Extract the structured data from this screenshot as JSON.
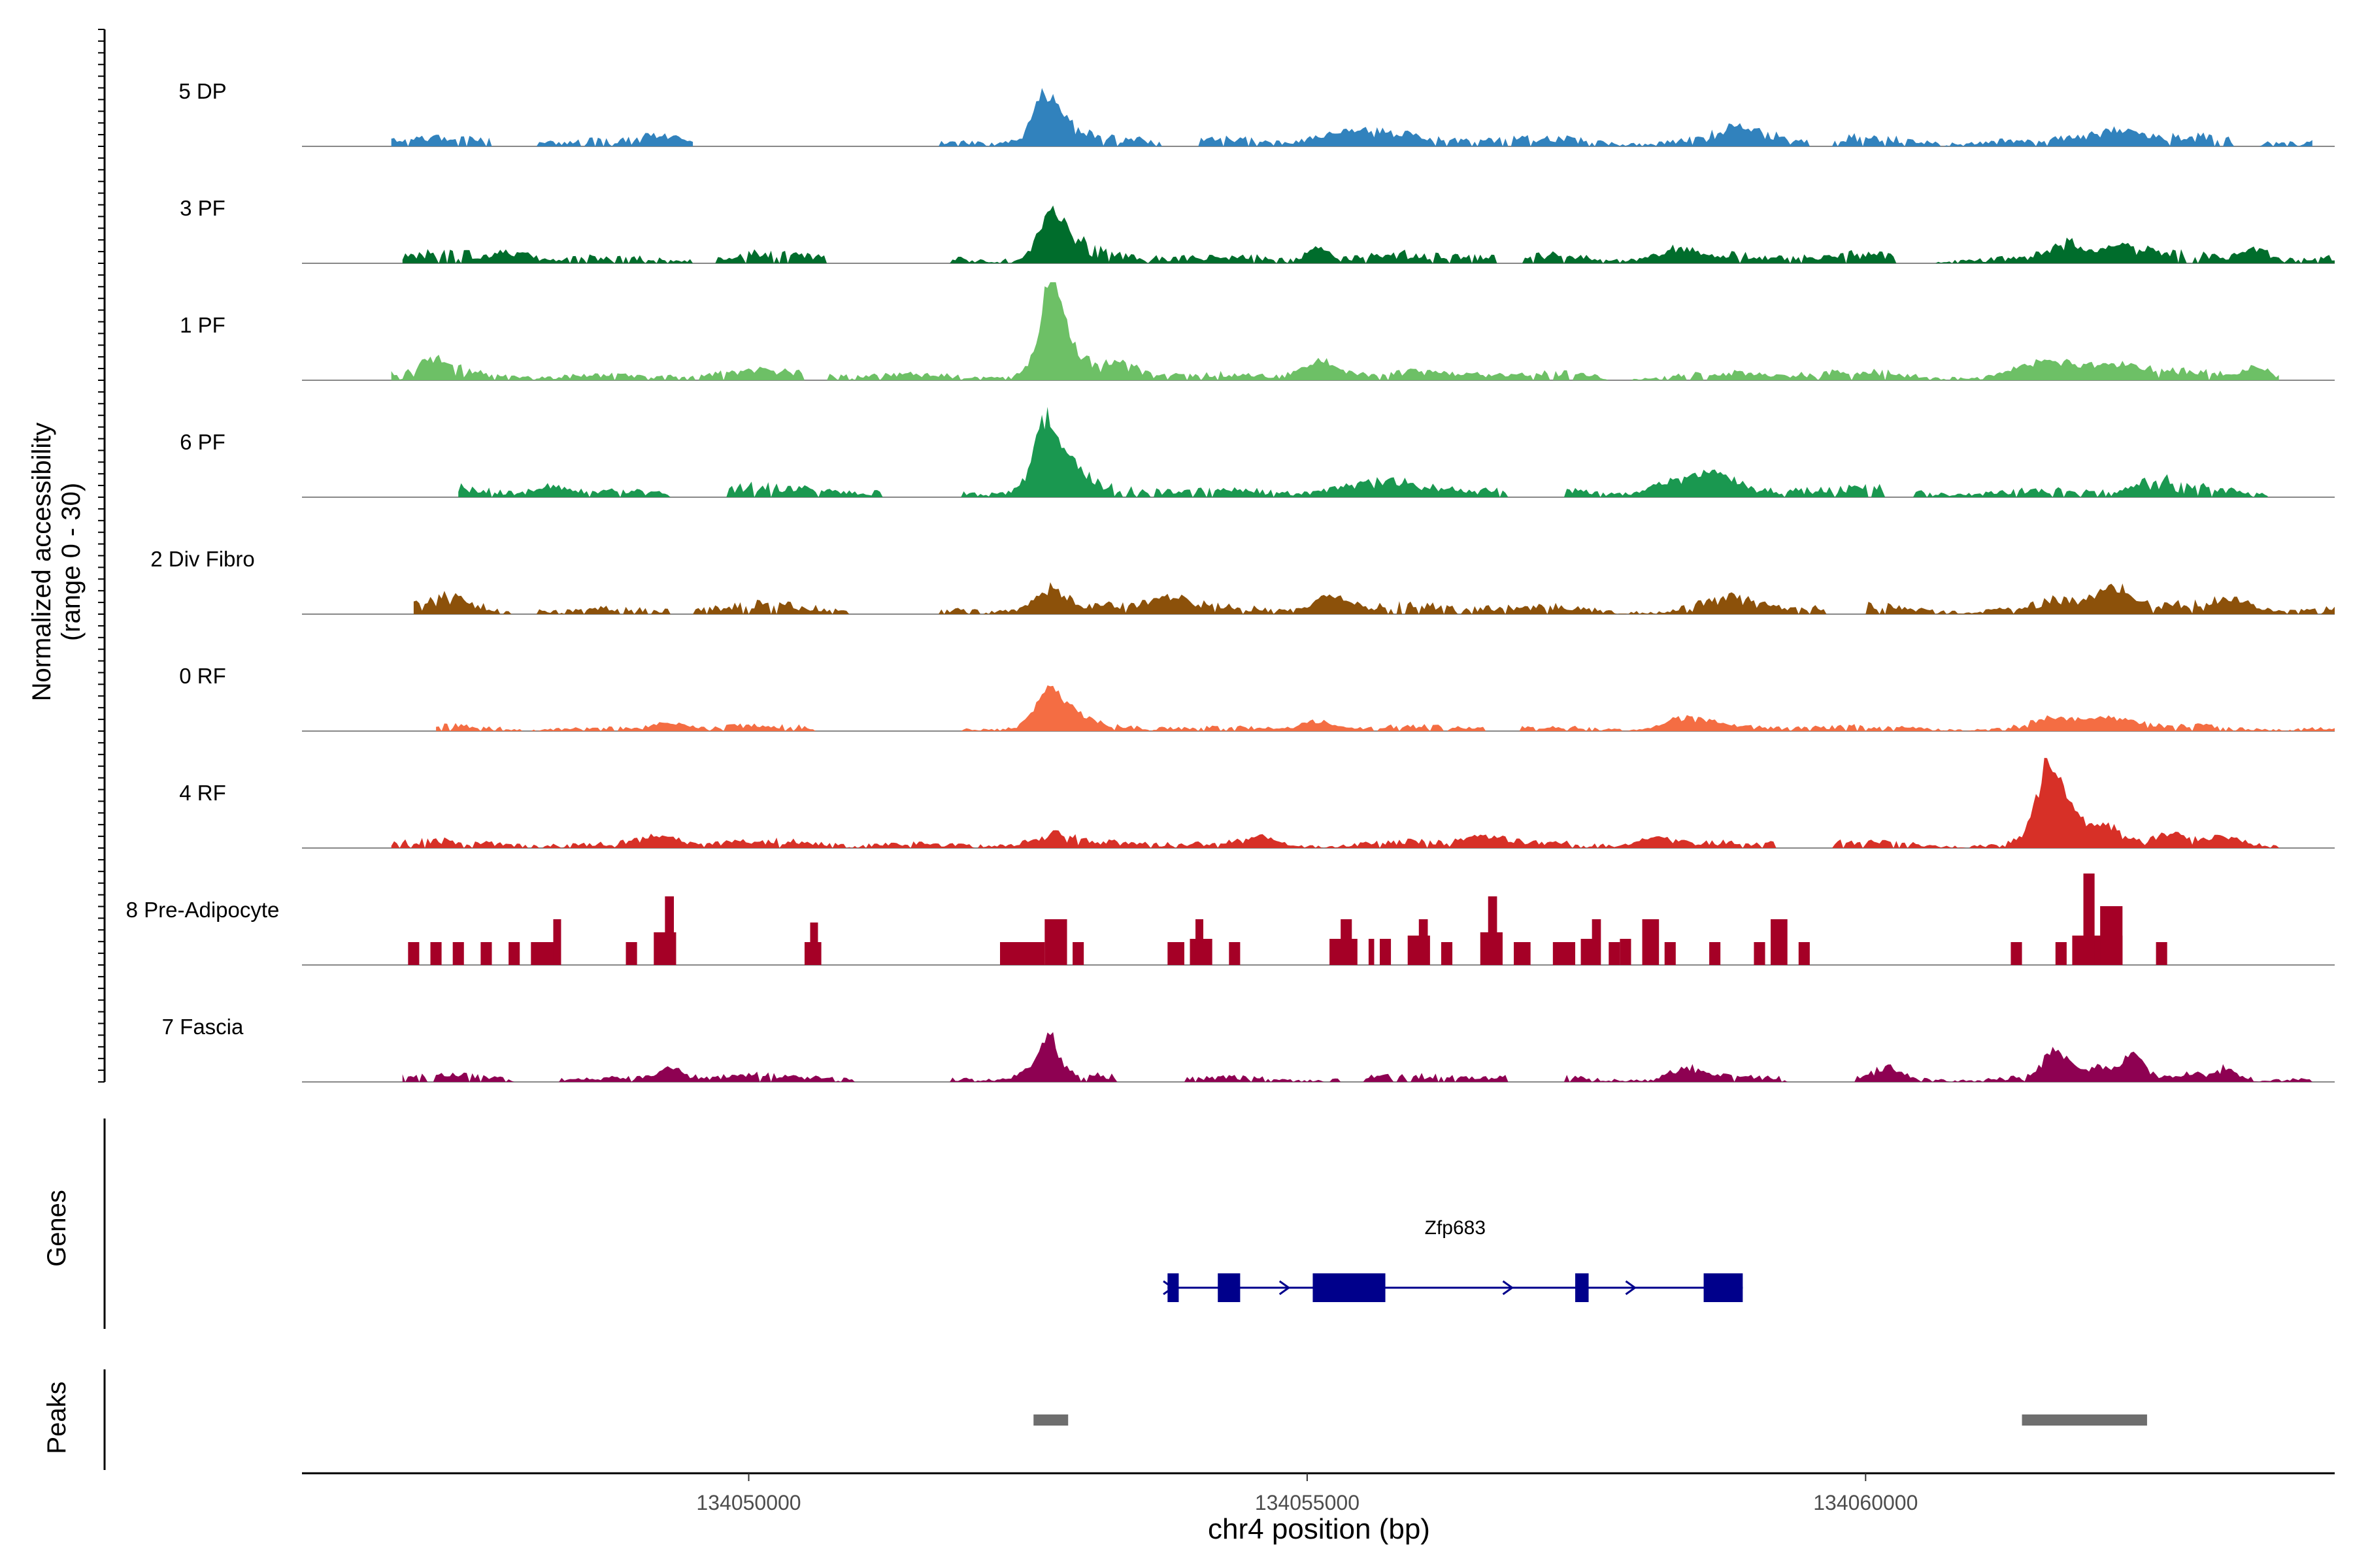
{
  "chart_data": {
    "type": "area",
    "title": "",
    "ylabel_line1": "Normalized accessibility",
    "ylabel_line2": "(range 0 - 30)",
    "xlabel": "chr4 position (bp)",
    "xlim": [
      134046000,
      134064200
    ],
    "ylim": [
      0,
      30
    ],
    "x_ticks": [
      134050000,
      134055000,
      134060000
    ],
    "x_tick_labels": [
      "134050000",
      "134055000",
      "134060000"
    ],
    "genes_label": "Genes",
    "peaks_label": "Peaks",
    "tracks": [
      {
        "name": "5 DP",
        "color": "#3182BD",
        "regions": [
          [
            134046800,
            134049500
          ],
          [
            134051700,
            134064000
          ]
        ],
        "base": 1.4,
        "noise": 2.2,
        "peaks": [
          [
            134052650,
            13,
            110
          ],
          [
            134052800,
            4,
            160
          ],
          [
            134055400,
            4,
            300
          ],
          [
            134058900,
            4,
            230
          ],
          [
            134062200,
            4,
            220
          ],
          [
            134049200,
            2.5,
            150
          ]
        ],
        "gaps": [
          [
            134047700,
            134048100
          ],
          [
            134050200,
            134051700
          ],
          [
            134053700,
            134054000
          ],
          [
            134059500,
            134059700
          ],
          [
            134063300,
            134063500
          ]
        ]
      },
      {
        "name": "3 PF",
        "color": "#006D2C",
        "regions": [
          [
            134046900,
            134064200
          ]
        ],
        "base": 1.4,
        "noise": 2.2,
        "peaks": [
          [
            134052700,
            13,
            110
          ],
          [
            134052900,
            5,
            150
          ],
          [
            134055100,
            4.5,
            100
          ],
          [
            134058300,
            3.5,
            200
          ],
          [
            134061800,
            5,
            130
          ],
          [
            134062300,
            4,
            200
          ],
          [
            134063500,
            4,
            110
          ],
          [
            134047900,
            2.5,
            160
          ]
        ],
        "gaps": [
          [
            134049500,
            134049700
          ],
          [
            134050700,
            134051800
          ],
          [
            134056700,
            134056900
          ],
          [
            134060300,
            134060600
          ]
        ]
      },
      {
        "name": "1 PF",
        "color": "#6DC066",
        "regions": [
          [
            134046800,
            134063700
          ]
        ],
        "base": 1.6,
        "noise": 1.8,
        "peaks": [
          [
            134052700,
            20,
            90
          ],
          [
            134052780,
            12,
            160
          ],
          [
            134055100,
            6,
            160
          ],
          [
            134047200,
            4,
            140
          ],
          [
            134061600,
            4,
            250
          ],
          [
            134062200,
            3.5,
            250
          ],
          [
            134063500,
            3.5,
            110
          ],
          [
            134053300,
            3,
            200
          ]
        ],
        "gaps": [
          [
            134050500,
            134050700
          ],
          [
            134057700,
            134057900
          ]
        ]
      },
      {
        "name": "6 PF",
        "color": "#1A9850",
        "regions": [
          [
            134047400,
            134063600
          ]
        ],
        "base": 1.6,
        "noise": 2.2,
        "peaks": [
          [
            134052650,
            17,
            100
          ],
          [
            134052800,
            9,
            180
          ],
          [
            134058300,
            5,
            200
          ],
          [
            134058700,
            5,
            150
          ],
          [
            134055500,
            3.5,
            300
          ],
          [
            134062600,
            3,
            200
          ],
          [
            134048200,
            2.5,
            130
          ]
        ],
        "gaps": [
          [
            134049300,
            134049800
          ],
          [
            134051200,
            134051900
          ],
          [
            134056800,
            134057300
          ],
          [
            134060200,
            134060400
          ]
        ]
      },
      {
        "name": "2 Div Fibro",
        "color": "#8C510A",
        "regions": [
          [
            134047000,
            134064200
          ]
        ],
        "base": 1.5,
        "noise": 2.0,
        "peaks": [
          [
            134052700,
            6,
            120
          ],
          [
            134055200,
            5.5,
            150
          ],
          [
            134062200,
            8,
            150
          ],
          [
            134061700,
            4,
            150
          ],
          [
            134053800,
            4,
            200
          ],
          [
            134058800,
            3.5,
            200
          ],
          [
            134047300,
            3,
            150
          ],
          [
            134063300,
            3,
            180
          ]
        ],
        "gaps": [
          [
            134047900,
            134048100
          ],
          [
            134049300,
            134049500
          ],
          [
            134050900,
            134051700
          ],
          [
            134059700,
            134060000
          ]
        ]
      },
      {
        "name": "0 RF",
        "color": "#F46D43",
        "regions": [
          [
            134047200,
            134064200
          ]
        ],
        "base": 0.8,
        "noise": 1.2,
        "peaks": [
          [
            134052700,
            10,
            120
          ],
          [
            134052800,
            5,
            200
          ],
          [
            134058400,
            3.5,
            200
          ],
          [
            134062200,
            3.5,
            200
          ],
          [
            134061700,
            3,
            200
          ],
          [
            134055100,
            3,
            150
          ],
          [
            134049300,
            2,
            150
          ]
        ],
        "gaps": [
          [
            134050600,
            134051900
          ],
          [
            134056600,
            134056900
          ]
        ]
      },
      {
        "name": "4 RF",
        "color": "#D73027",
        "regions": [
          [
            134046800,
            134063700
          ]
        ],
        "base": 1.0,
        "noise": 1.6,
        "peaks": [
          [
            134061650,
            20,
            110
          ],
          [
            134061800,
            9,
            220
          ],
          [
            134062200,
            4,
            120
          ],
          [
            134062700,
            3.5,
            120
          ],
          [
            134049200,
            3.5,
            180
          ],
          [
            134056600,
            3,
            160
          ],
          [
            134052700,
            3,
            160
          ],
          [
            134058100,
            3,
            150
          ],
          [
            134063200,
            2.5,
            150
          ],
          [
            134054600,
            2.5,
            160
          ]
        ],
        "gaps": [
          [
            134059200,
            134059700
          ]
        ]
      },
      {
        "name": "8 Pre-Adipocyte",
        "color": "#A50026",
        "style": "blocks",
        "blocks": [
          [
            134046950,
            134047050,
            7
          ],
          [
            134047150,
            134047250,
            7
          ],
          [
            134047350,
            134047450,
            7
          ],
          [
            134047600,
            134047700,
            7
          ],
          [
            134047850,
            134047950,
            7
          ],
          [
            134048050,
            134048300,
            7
          ],
          [
            134048250,
            134048320,
            14
          ],
          [
            134048900,
            134049000,
            7
          ],
          [
            134049150,
            134049350,
            10
          ],
          [
            134049250,
            134049330,
            21
          ],
          [
            134050500,
            134050650,
            7
          ],
          [
            134050550,
            134050620,
            13
          ],
          [
            134052250,
            134052650,
            7
          ],
          [
            134052650,
            134052850,
            14
          ],
          [
            134052900,
            134053000,
            7
          ],
          [
            134053750,
            134053900,
            7
          ],
          [
            134053950,
            134054150,
            8
          ],
          [
            134054000,
            134054070,
            14
          ],
          [
            134054300,
            134054400,
            7
          ],
          [
            134055200,
            134055450,
            8
          ],
          [
            134055300,
            134055400,
            14
          ],
          [
            134055550,
            134055600,
            8
          ],
          [
            134055650,
            134055750,
            8
          ],
          [
            134055900,
            134056100,
            9
          ],
          [
            134056000,
            134056080,
            14
          ],
          [
            134056200,
            134056300,
            7
          ],
          [
            134056550,
            134056750,
            10
          ],
          [
            134056620,
            134056700,
            21
          ],
          [
            134056850,
            134057000,
            7
          ],
          [
            134057200,
            134057400,
            7
          ],
          [
            134057450,
            134057600,
            8
          ],
          [
            134057550,
            134057630,
            14
          ],
          [
            134057700,
            134057800,
            7
          ],
          [
            134057800,
            134057900,
            8
          ],
          [
            134058000,
            134058150,
            14
          ],
          [
            134058200,
            134058300,
            7
          ],
          [
            134058600,
            134058700,
            7
          ],
          [
            134059000,
            134059100,
            7
          ],
          [
            134059150,
            134059300,
            14
          ],
          [
            134059400,
            134059500,
            7
          ],
          [
            134061300,
            134061400,
            7
          ],
          [
            134061700,
            134061800,
            7
          ],
          [
            134061850,
            134062300,
            9
          ],
          [
            134061950,
            134062050,
            28
          ],
          [
            134062100,
            134062300,
            18
          ],
          [
            134062600,
            134062700,
            7
          ]
        ]
      },
      {
        "name": "7 Fascia",
        "color": "#8E0152",
        "regions": [
          [
            134046900,
            134064000
          ]
        ],
        "base": 1.0,
        "noise": 1.5,
        "peaks": [
          [
            134052700,
            10,
            80
          ],
          [
            134052600,
            4,
            150
          ],
          [
            134061700,
            9,
            100
          ],
          [
            134062400,
            7,
            80
          ],
          [
            134062100,
            4,
            200
          ],
          [
            134049300,
            4,
            120
          ],
          [
            134058400,
            3.5,
            150
          ],
          [
            134060200,
            4,
            100
          ],
          [
            134063200,
            3,
            120
          ]
        ],
        "gaps": [
          [
            134047900,
            134048300
          ],
          [
            134051000,
            134051800
          ],
          [
            134053300,
            134053900
          ],
          [
            134055300,
            134055500
          ],
          [
            134056800,
            134057300
          ],
          [
            134059300,
            134059900
          ]
        ]
      }
    ],
    "gene": {
      "name": "Zfp683",
      "start": 134053750,
      "end": 134058900,
      "exons": [
        [
          134053750,
          134053850
        ],
        [
          134054200,
          134054400
        ],
        [
          134055050,
          134055700
        ],
        [
          134057400,
          134057520
        ],
        [
          134058550,
          134058900
        ]
      ],
      "arrows": [
        134053760,
        134054800,
        134056800,
        134057900
      ],
      "color": "#00008B"
    },
    "peaks": [
      [
        134052550,
        134052860
      ],
      [
        134061400,
        134062520
      ]
    ],
    "peak_color": "#6E6E6E"
  }
}
